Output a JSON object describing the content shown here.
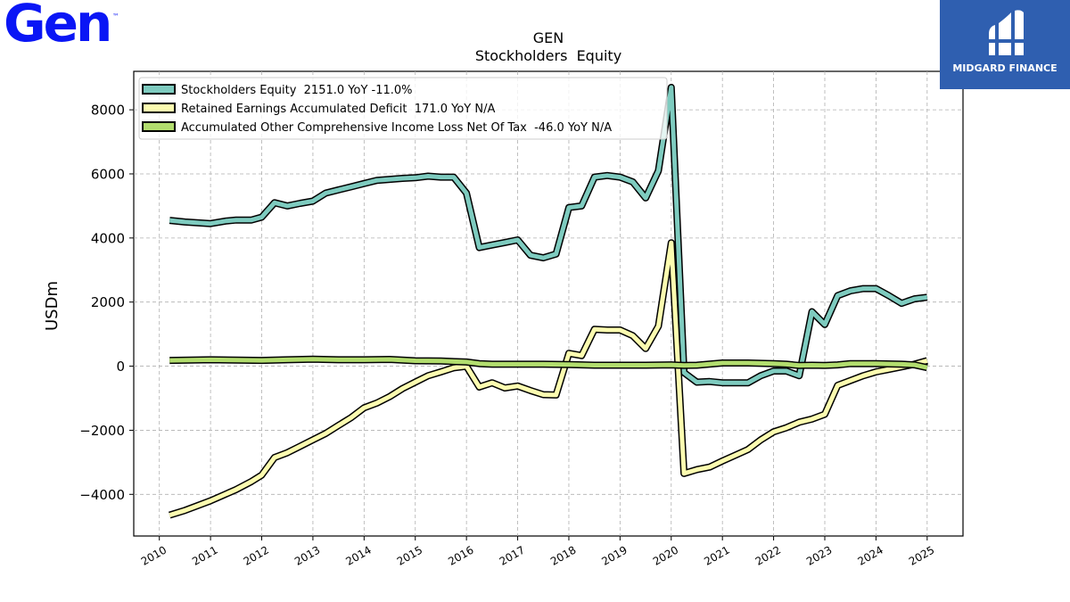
{
  "brand": {
    "logo_text": "Gen",
    "trademark": "™",
    "watermark_text": "MIDGARD FINANCE"
  },
  "colors": {
    "brand_blue": "#0a16f5",
    "watermark_bg": "#2f5fb0"
  },
  "chart_data": {
    "type": "line",
    "title": "GEN",
    "subtitle": "Stockholders  Equity",
    "xlabel": "",
    "ylabel": "USDm",
    "xlim": [
      2009.5,
      2025.7
    ],
    "ylim": [
      -5300,
      9200
    ],
    "yticks": [
      -4000,
      -2000,
      0,
      2000,
      4000,
      6000,
      8000
    ],
    "ytick_labels": [
      "−4000",
      "−2000",
      "0",
      "2000",
      "4000",
      "6000",
      "8000"
    ],
    "xticks": [
      2010,
      2011,
      2012,
      2013,
      2014,
      2015,
      2016,
      2017,
      2018,
      2019,
      2020,
      2021,
      2022,
      2023,
      2024,
      2025
    ],
    "xtick_labels": [
      "2010",
      "2011",
      "2012",
      "2013",
      "2014",
      "2015",
      "2016",
      "2017",
      "2018",
      "2019",
      "2020",
      "2021",
      "2022",
      "2023",
      "2024",
      "2025"
    ],
    "grid": true,
    "legend_position": "top-left",
    "series": [
      {
        "name": "Stockholders Equity  2151.0 YoY -11.0%",
        "color": "#7ecbbf",
        "points": [
          [
            2010.2,
            4550
          ],
          [
            2010.5,
            4500
          ],
          [
            2011.0,
            4450
          ],
          [
            2011.3,
            4530
          ],
          [
            2011.5,
            4560
          ],
          [
            2011.8,
            4560
          ],
          [
            2012.0,
            4650
          ],
          [
            2012.25,
            5100
          ],
          [
            2012.5,
            5000
          ],
          [
            2012.75,
            5080
          ],
          [
            2013.0,
            5150
          ],
          [
            2013.25,
            5400
          ],
          [
            2013.5,
            5500
          ],
          [
            2013.75,
            5600
          ],
          [
            2014.0,
            5700
          ],
          [
            2014.25,
            5800
          ],
          [
            2014.5,
            5830
          ],
          [
            2014.75,
            5860
          ],
          [
            2015.0,
            5880
          ],
          [
            2015.25,
            5930
          ],
          [
            2015.5,
            5900
          ],
          [
            2015.75,
            5900
          ],
          [
            2016.0,
            5400
          ],
          [
            2016.25,
            3700
          ],
          [
            2016.5,
            3780
          ],
          [
            2016.75,
            3860
          ],
          [
            2017.0,
            3940
          ],
          [
            2017.25,
            3460
          ],
          [
            2017.5,
            3380
          ],
          [
            2017.75,
            3500
          ],
          [
            2018.0,
            4950
          ],
          [
            2018.25,
            5000
          ],
          [
            2018.5,
            5900
          ],
          [
            2018.75,
            5950
          ],
          [
            2019.0,
            5900
          ],
          [
            2019.25,
            5750
          ],
          [
            2019.5,
            5250
          ],
          [
            2019.75,
            6100
          ],
          [
            2020.0,
            8700
          ],
          [
            2020.25,
            -200
          ],
          [
            2020.5,
            -500
          ],
          [
            2020.75,
            -480
          ],
          [
            2021.0,
            -520
          ],
          [
            2021.25,
            -520
          ],
          [
            2021.5,
            -520
          ],
          [
            2021.75,
            -300
          ],
          [
            2022.0,
            -150
          ],
          [
            2022.25,
            -150
          ],
          [
            2022.5,
            -300
          ],
          [
            2022.75,
            1700
          ],
          [
            2023.0,
            1300
          ],
          [
            2023.25,
            2200
          ],
          [
            2023.5,
            2350
          ],
          [
            2023.75,
            2420
          ],
          [
            2024.0,
            2420
          ],
          [
            2024.25,
            2200
          ],
          [
            2024.5,
            1960
          ],
          [
            2024.75,
            2100
          ],
          [
            2025.0,
            2151
          ]
        ]
      },
      {
        "name": "Retained Earnings Accumulated Deficit  171.0 YoY N/A",
        "color": "#fcfcb0",
        "points": [
          [
            2010.2,
            -4650
          ],
          [
            2010.5,
            -4500
          ],
          [
            2011.0,
            -4200
          ],
          [
            2011.5,
            -3850
          ],
          [
            2011.8,
            -3600
          ],
          [
            2012.0,
            -3400
          ],
          [
            2012.25,
            -2850
          ],
          [
            2012.5,
            -2700
          ],
          [
            2012.75,
            -2500
          ],
          [
            2013.0,
            -2300
          ],
          [
            2013.25,
            -2100
          ],
          [
            2013.5,
            -1850
          ],
          [
            2013.75,
            -1600
          ],
          [
            2014.0,
            -1300
          ],
          [
            2014.25,
            -1150
          ],
          [
            2014.5,
            -950
          ],
          [
            2014.75,
            -700
          ],
          [
            2015.0,
            -500
          ],
          [
            2015.25,
            -300
          ],
          [
            2015.5,
            -180
          ],
          [
            2015.75,
            -50
          ],
          [
            2016.0,
            0
          ],
          [
            2016.25,
            -650
          ],
          [
            2016.5,
            -520
          ],
          [
            2016.75,
            -680
          ],
          [
            2017.0,
            -620
          ],
          [
            2017.25,
            -760
          ],
          [
            2017.5,
            -890
          ],
          [
            2017.75,
            -900
          ],
          [
            2018.0,
            400
          ],
          [
            2018.25,
            330
          ],
          [
            2018.5,
            1150
          ],
          [
            2018.75,
            1130
          ],
          [
            2019.0,
            1130
          ],
          [
            2019.25,
            950
          ],
          [
            2019.5,
            550
          ],
          [
            2019.75,
            1250
          ],
          [
            2020.0,
            3850
          ],
          [
            2020.25,
            -3350
          ],
          [
            2020.5,
            -3230
          ],
          [
            2020.75,
            -3150
          ],
          [
            2021.0,
            -2960
          ],
          [
            2021.25,
            -2780
          ],
          [
            2021.5,
            -2600
          ],
          [
            2021.75,
            -2300
          ],
          [
            2022.0,
            -2050
          ],
          [
            2022.25,
            -1920
          ],
          [
            2022.5,
            -1750
          ],
          [
            2022.75,
            -1650
          ],
          [
            2023.0,
            -1500
          ],
          [
            2023.25,
            -600
          ],
          [
            2023.5,
            -450
          ],
          [
            2023.75,
            -300
          ],
          [
            2024.0,
            -180
          ],
          [
            2024.25,
            -100
          ],
          [
            2024.5,
            -20
          ],
          [
            2024.75,
            60
          ],
          [
            2025.0,
            171
          ]
        ]
      },
      {
        "name": "Accumulated Other Comprehensive Income Loss Net Of Tax  -46.0 YoY N/A",
        "color": "#b2dd6e",
        "points": [
          [
            2010.2,
            180
          ],
          [
            2011.0,
            200
          ],
          [
            2011.5,
            190
          ],
          [
            2012.0,
            180
          ],
          [
            2012.5,
            200
          ],
          [
            2013.0,
            220
          ],
          [
            2013.5,
            200
          ],
          [
            2014.0,
            200
          ],
          [
            2014.5,
            210
          ],
          [
            2015.0,
            170
          ],
          [
            2015.5,
            160
          ],
          [
            2016.0,
            130
          ],
          [
            2016.25,
            80
          ],
          [
            2016.5,
            60
          ],
          [
            2017.0,
            60
          ],
          [
            2017.5,
            60
          ],
          [
            2018.0,
            50
          ],
          [
            2018.5,
            30
          ],
          [
            2019.0,
            30
          ],
          [
            2019.5,
            30
          ],
          [
            2020.0,
            40
          ],
          [
            2020.25,
            20
          ],
          [
            2020.5,
            30
          ],
          [
            2021.0,
            100
          ],
          [
            2021.5,
            100
          ],
          [
            2022.0,
            80
          ],
          [
            2022.25,
            60
          ],
          [
            2022.5,
            20
          ],
          [
            2022.75,
            30
          ],
          [
            2023.0,
            20
          ],
          [
            2023.25,
            40
          ],
          [
            2023.5,
            80
          ],
          [
            2024.0,
            80
          ],
          [
            2024.5,
            60
          ],
          [
            2024.75,
            40
          ],
          [
            2025.0,
            -46
          ]
        ]
      }
    ]
  }
}
